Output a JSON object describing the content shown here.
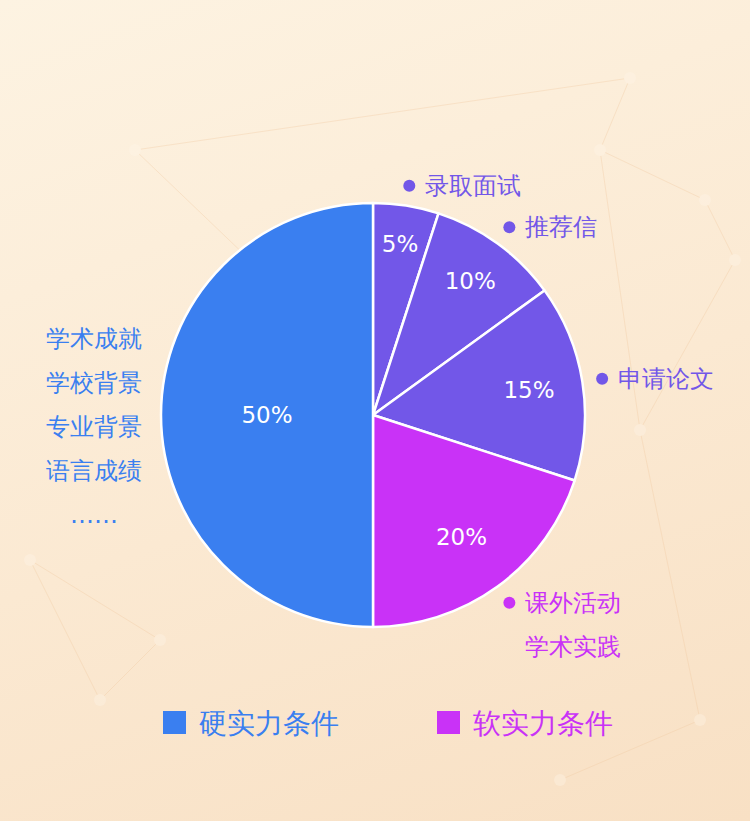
{
  "chart_data": {
    "type": "pie",
    "categories": [
      [
        "录取面试"
      ],
      [
        "推荐信"
      ],
      [
        "申请论文"
      ],
      [
        "课外活动",
        "学术实践"
      ],
      [
        "学术成就",
        "学校背景",
        "专业背景",
        "语言成绩",
        "……"
      ]
    ],
    "values": [
      5,
      10,
      15,
      20,
      50
    ],
    "value_labels": [
      "5%",
      "10%",
      "15%",
      "20%",
      "50%"
    ],
    "colors": [
      "#7257e8",
      "#7257e8",
      "#7257e8",
      "#c932f7",
      "#3a7ff0"
    ],
    "data_labels": true,
    "legend": "bottom",
    "groups": [
      {
        "name": "硬实力条件",
        "color": "#3a7ff0"
      },
      {
        "name": "软实力条件",
        "color": "#c932f7"
      }
    ]
  }
}
